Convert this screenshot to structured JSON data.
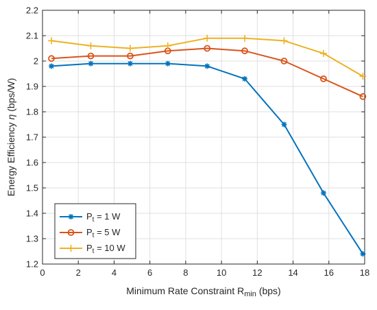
{
  "chart_data": {
    "type": "line",
    "xlabel": {
      "main": "Minimum Rate Constraint R",
      "sub": "min",
      "suffix": " (bps)"
    },
    "ylabel": {
      "main": "Energy Efficiency ",
      "symbol": "η",
      "suffix": " (bps/W)"
    },
    "xlim": [
      0,
      18
    ],
    "ylim": [
      1.2,
      2.2
    ],
    "xticks": [
      "0",
      "2",
      "4",
      "6",
      "8",
      "10",
      "12",
      "14",
      "16",
      "18"
    ],
    "yticks": [
      "1.2",
      "1.3",
      "1.4",
      "1.5",
      "1.6",
      "1.7",
      "1.8",
      "1.9",
      "2",
      "2.1",
      "2.2"
    ],
    "grid": true,
    "legend_position": "bottom-left",
    "x": [
      0.5,
      2.7,
      4.9,
      7.0,
      9.2,
      11.3,
      13.5,
      15.7,
      17.9
    ],
    "series": [
      {
        "name": "1 W",
        "legend": {
          "main": "P",
          "sub": "t",
          "rest": " = 1 W"
        },
        "color": "#0072BD",
        "marker": "asterisk",
        "values": [
          1.98,
          1.99,
          1.99,
          1.99,
          1.98,
          1.93,
          1.75,
          1.48,
          1.24
        ]
      },
      {
        "name": "5 W",
        "legend": {
          "main": "P",
          "sub": "t",
          "rest": " = 5 W"
        },
        "color": "#D95319",
        "marker": "circle",
        "values": [
          2.01,
          2.02,
          2.02,
          2.04,
          2.05,
          2.04,
          2.0,
          1.93,
          1.86
        ]
      },
      {
        "name": "10 W",
        "legend": {
          "main": "P",
          "sub": "t",
          "rest": " = 10 W"
        },
        "color": "#EDB120",
        "marker": "plus",
        "values": [
          2.08,
          2.06,
          2.05,
          2.06,
          2.09,
          2.09,
          2.08,
          2.03,
          1.94
        ]
      }
    ]
  }
}
